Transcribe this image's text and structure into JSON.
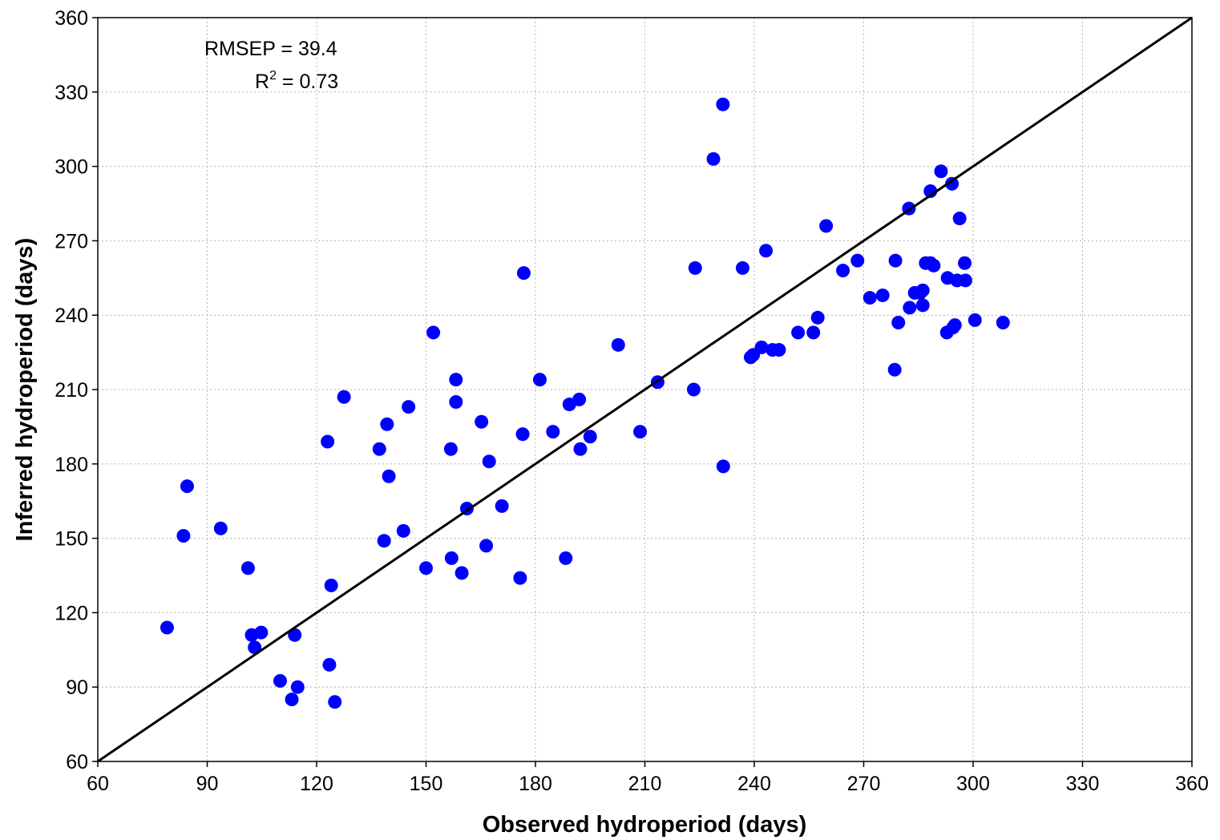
{
  "chart_data": {
    "type": "scatter",
    "title": "",
    "xlabel": "Observed hydroperiod (days)",
    "ylabel": "Inferred hydroperiod (days)",
    "xlim": [
      60,
      360
    ],
    "ylim": [
      60,
      360
    ],
    "xticks": [
      60,
      90,
      120,
      150,
      180,
      210,
      240,
      270,
      300,
      330,
      360
    ],
    "yticks": [
      60,
      90,
      120,
      150,
      180,
      210,
      240,
      270,
      300,
      330,
      360
    ],
    "grid": true,
    "marker_color": "#0000ff",
    "line_color": "#000000",
    "reference_line": {
      "type": "1:1",
      "from": [
        60,
        60
      ],
      "to": [
        360,
        360
      ]
    },
    "annotations": {
      "rmsep": {
        "label": "RMSEP",
        "value": "39.4"
      },
      "r2": {
        "label": "R",
        "superscript": "2",
        "value": "0.73"
      }
    },
    "points": [
      [
        79,
        114
      ],
      [
        83.5,
        151
      ],
      [
        84.5,
        171
      ],
      [
        93.7,
        154
      ],
      [
        101.2,
        138
      ],
      [
        102.2,
        111
      ],
      [
        103,
        106
      ],
      [
        104.8,
        112
      ],
      [
        110,
        92.5
      ],
      [
        113.2,
        85
      ],
      [
        114,
        111
      ],
      [
        114.8,
        90
      ],
      [
        123,
        189
      ],
      [
        123.5,
        99
      ],
      [
        124,
        131
      ],
      [
        125,
        84
      ],
      [
        127.5,
        207
      ],
      [
        137.2,
        186
      ],
      [
        138.5,
        149
      ],
      [
        139.3,
        196
      ],
      [
        139.8,
        175
      ],
      [
        143.8,
        153
      ],
      [
        145.2,
        203
      ],
      [
        150,
        138
      ],
      [
        152,
        233
      ],
      [
        156.8,
        186
      ],
      [
        157,
        142
      ],
      [
        158.2,
        214
      ],
      [
        158.2,
        205
      ],
      [
        159.8,
        136
      ],
      [
        161.2,
        162
      ],
      [
        165.2,
        197
      ],
      [
        166.5,
        147
      ],
      [
        167.3,
        181
      ],
      [
        170.8,
        163
      ],
      [
        175.8,
        134
      ],
      [
        176.5,
        192
      ],
      [
        176.8,
        257
      ],
      [
        181.2,
        214
      ],
      [
        184.8,
        193
      ],
      [
        188.3,
        142
      ],
      [
        189.3,
        204
      ],
      [
        192,
        206
      ],
      [
        192.3,
        186
      ],
      [
        195,
        191
      ],
      [
        202.7,
        228
      ],
      [
        208.7,
        193
      ],
      [
        213.5,
        213
      ],
      [
        223.4,
        210
      ],
      [
        223.8,
        259
      ],
      [
        228.8,
        303
      ],
      [
        231.4,
        325
      ],
      [
        231.5,
        179
      ],
      [
        236.8,
        259
      ],
      [
        239,
        223
      ],
      [
        239.7,
        224
      ],
      [
        242,
        227
      ],
      [
        243.2,
        266
      ],
      [
        245,
        226
      ],
      [
        246.8,
        226
      ],
      [
        252,
        233
      ],
      [
        256.2,
        233
      ],
      [
        257.4,
        239
      ],
      [
        259.7,
        276
      ],
      [
        264.3,
        258
      ],
      [
        268.3,
        262
      ],
      [
        271.7,
        247
      ],
      [
        275.2,
        248
      ],
      [
        278.5,
        218
      ],
      [
        278.7,
        262
      ],
      [
        279.5,
        237
      ],
      [
        282.4,
        283
      ],
      [
        282.6,
        243
      ],
      [
        284,
        249
      ],
      [
        285.5,
        249
      ],
      [
        286.2,
        244
      ],
      [
        286.2,
        250
      ],
      [
        287,
        261
      ],
      [
        288.3,
        290
      ],
      [
        288.3,
        261
      ],
      [
        289.2,
        260
      ],
      [
        291.2,
        298
      ],
      [
        292.8,
        233
      ],
      [
        293,
        255
      ],
      [
        294.2,
        293
      ],
      [
        294.5,
        235
      ],
      [
        295,
        236
      ],
      [
        295.6,
        254
      ],
      [
        296.3,
        279
      ],
      [
        297.7,
        261
      ],
      [
        297.9,
        254
      ],
      [
        300.5,
        238
      ],
      [
        308.2,
        237
      ]
    ]
  }
}
